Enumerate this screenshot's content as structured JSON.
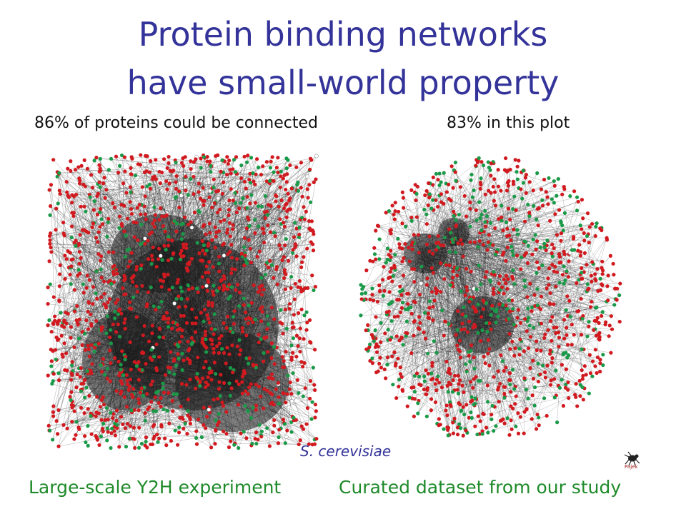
{
  "slide": {
    "title_line1": "Protein binding networks",
    "title_line2": "have small-world property",
    "left_subtitle": "86% of proteins could be connected",
    "right_subtitle": "83% in this plot",
    "species": "S. cerevisiae",
    "left_caption": "Large-scale Y2H experiment",
    "right_caption": "Curated dataset from our study",
    "logo_text": "Pajek"
  },
  "colors": {
    "title": "#33339a",
    "caption": "#1f8a2a",
    "node_red": "#d11a1f",
    "node_green": "#1a9a48",
    "node_white": "#ffffff",
    "edge": "#1a1a1a"
  },
  "networks": [
    {
      "name": "left-network",
      "shape": "square-dense"
    },
    {
      "name": "right-network",
      "shape": "round-clustered"
    }
  ],
  "icons": [
    "pajek-logo-icon"
  ]
}
